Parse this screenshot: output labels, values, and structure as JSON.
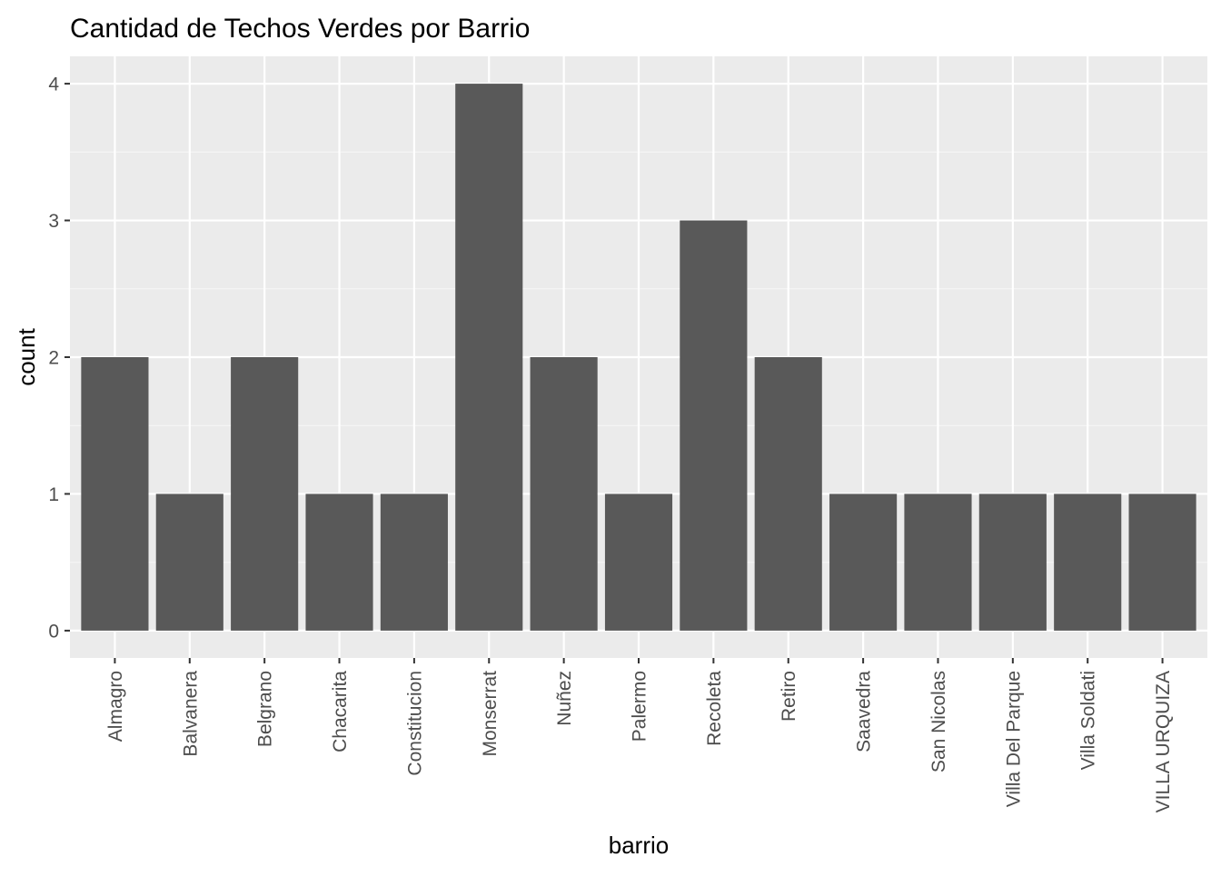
{
  "chart_data": {
    "type": "bar",
    "title": "Cantidad de Techos Verdes por Barrio",
    "xlabel": "barrio",
    "ylabel": "count",
    "categories": [
      "Almagro",
      "Balvanera",
      "Belgrano",
      "Chacarita",
      "Constitucion",
      "Monserrat",
      "Nuñez",
      "Palermo",
      "Recoleta",
      "Retiro",
      "Saavedra",
      "San Nicolas",
      "Villa Del Parque",
      "Villa Soldati",
      "VILLA URQUIZA"
    ],
    "values": [
      2,
      1,
      2,
      1,
      1,
      4,
      2,
      1,
      3,
      2,
      1,
      1,
      1,
      1,
      1
    ],
    "ylim": [
      -0.2,
      4.2
    ],
    "yticks": [
      0,
      1,
      2,
      3,
      4
    ],
    "grid": true,
    "legend": "none",
    "colors": {
      "bar": "#595959",
      "panel": "#ebebeb",
      "grid_major": "#ffffff",
      "grid_minor": "#f5f5f5",
      "tick": "#333333"
    }
  }
}
